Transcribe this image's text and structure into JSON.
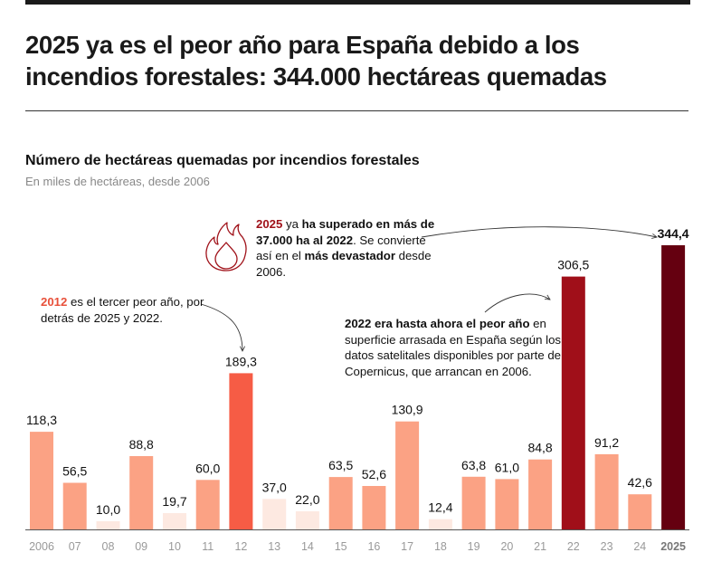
{
  "headline": "2025 ya es el peor año para España debido a los incendios forestales: 344.000 hectáreas quemadas",
  "chart_data": {
    "type": "bar",
    "title": "Número de hectáreas quemadas por incendios forestales",
    "subtitle": "En miles de hectáreas, desde 2006",
    "xlabel": "",
    "ylabel": "",
    "ylim": [
      0,
      350
    ],
    "grid": false,
    "categories": [
      "2006",
      "07",
      "08",
      "09",
      "10",
      "11",
      "12",
      "13",
      "14",
      "15",
      "16",
      "17",
      "18",
      "19",
      "20",
      "21",
      "22",
      "23",
      "24",
      "2025"
    ],
    "values": [
      118.3,
      56.5,
      10.0,
      88.8,
      19.7,
      60.0,
      189.3,
      37.0,
      22.0,
      63.5,
      52.6,
      130.9,
      12.4,
      63.8,
      61.0,
      84.8,
      306.5,
      91.2,
      42.6,
      344.4
    ],
    "labels": [
      "118,3",
      "56,5",
      "10,0",
      "88,8",
      "19,7",
      "60,0",
      "189,3",
      "37,0",
      "22,0",
      "63,5",
      "52,6",
      "130,9",
      "12,4",
      "63,8",
      "61,0",
      "84,8",
      "306,5",
      "91,2",
      "42,6",
      "344,4"
    ],
    "colors": {
      "low": "#fde9e1",
      "mid": "#fba284",
      "y2012": "#f65c45",
      "y2022": "#a00f19",
      "y2025": "#650010"
    },
    "color_by_category": [
      "mid",
      "mid",
      "low",
      "mid",
      "low",
      "mid",
      "y2012",
      "low",
      "low",
      "mid",
      "mid",
      "mid",
      "low",
      "mid",
      "mid",
      "mid",
      "y2022",
      "mid",
      "mid",
      "y2025"
    ],
    "highlight_bold": [
      "2025"
    ],
    "annotations": [
      {
        "target": "2025",
        "parts": [
          {
            "text": "2025",
            "style": "red1"
          },
          {
            "text": " ya ",
            "style": ""
          },
          {
            "text": "ha superado en más de 37.000 ha al 2022",
            "style": "b"
          },
          {
            "text": ". Se convierte así en el ",
            "style": ""
          },
          {
            "text": "más devastador",
            "style": "b"
          },
          {
            "text": " desde 2006.",
            "style": ""
          }
        ],
        "icon": "fire-icon"
      },
      {
        "target": "12",
        "parts": [
          {
            "text": "2012",
            "style": "red2"
          },
          {
            "text": " es el tercer peor año, por detrás de 2025 y 2022.",
            "style": ""
          }
        ]
      },
      {
        "target": "22",
        "parts": [
          {
            "text": "2022 era hasta ahora el peor año",
            "style": "b"
          },
          {
            "text": " en superficie arrasada en España según los datos satelitales disponibles por parte de Copernicus, que arrancan en 2006.",
            "style": ""
          }
        ]
      }
    ]
  }
}
